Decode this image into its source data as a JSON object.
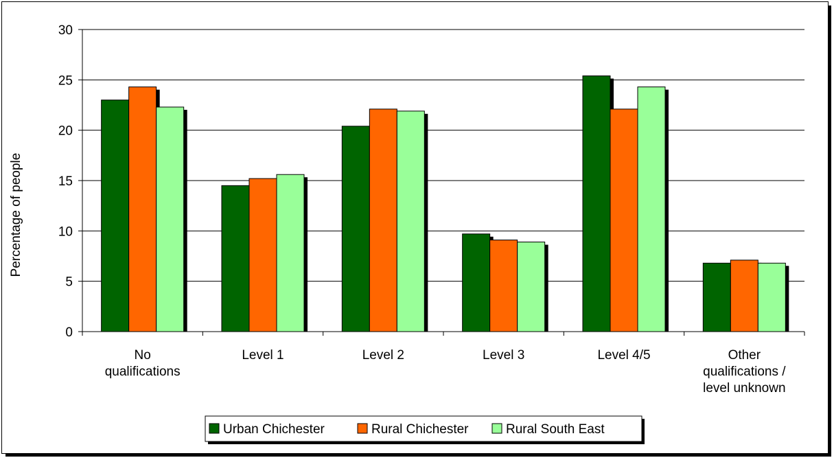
{
  "chart_data": {
    "type": "bar",
    "title": "",
    "xlabel": "",
    "ylabel": "Percentage of people",
    "ylim": [
      0,
      30
    ],
    "yticks": [
      0,
      5,
      10,
      15,
      20,
      25,
      30
    ],
    "grid": true,
    "legend_position": "bottom",
    "categories": [
      [
        "No",
        "qualifications"
      ],
      [
        "Level 1"
      ],
      [
        "Level 2"
      ],
      [
        "Level 3"
      ],
      [
        "Level 4/5"
      ],
      [
        "Other",
        "qualifications /",
        "level unknown"
      ]
    ],
    "series": [
      {
        "name": "Urban Chichester",
        "color": "#006400",
        "values": [
          23.0,
          14.5,
          20.4,
          9.7,
          25.4,
          6.8
        ]
      },
      {
        "name": "Rural Chichester",
        "color": "#ff6600",
        "values": [
          24.3,
          15.2,
          22.1,
          9.1,
          22.1,
          7.1
        ]
      },
      {
        "name": "Rural South East",
        "color": "#99ff99",
        "values": [
          22.3,
          15.6,
          21.9,
          8.9,
          24.3,
          6.8
        ]
      }
    ]
  }
}
